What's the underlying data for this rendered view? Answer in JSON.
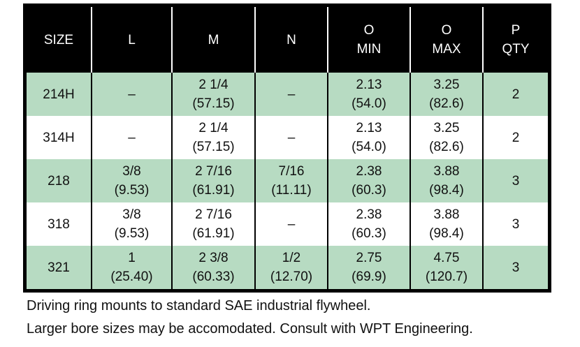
{
  "colors": {
    "row_green": "#b7dbc2",
    "header_bg": "#000000",
    "header_text": "#ffffff",
    "body_text": "#111111"
  },
  "table": {
    "columns": [
      {
        "key": "size",
        "label_lines": [
          "SIZE"
        ]
      },
      {
        "key": "l",
        "label_lines": [
          "L"
        ]
      },
      {
        "key": "m",
        "label_lines": [
          "M"
        ]
      },
      {
        "key": "n",
        "label_lines": [
          "N"
        ]
      },
      {
        "key": "o-min",
        "label_lines": [
          "O",
          "MIN"
        ]
      },
      {
        "key": "o-max",
        "label_lines": [
          "O",
          "MAX"
        ]
      },
      {
        "key": "p-qty",
        "label_lines": [
          "P",
          "QTY"
        ]
      }
    ],
    "rows": [
      {
        "shaded": true,
        "cells": [
          [
            "214H"
          ],
          [
            "–"
          ],
          [
            "2 1/4",
            "(57.15)"
          ],
          [
            "–"
          ],
          [
            "2.13",
            "(54.0)"
          ],
          [
            "3.25",
            "(82.6)"
          ],
          [
            "2"
          ]
        ]
      },
      {
        "shaded": false,
        "cells": [
          [
            "314H"
          ],
          [
            "–"
          ],
          [
            "2 1/4",
            "(57.15)"
          ],
          [
            "–"
          ],
          [
            "2.13",
            "(54.0)"
          ],
          [
            "3.25",
            "(82.6)"
          ],
          [
            "2"
          ]
        ]
      },
      {
        "shaded": true,
        "cells": [
          [
            "218"
          ],
          [
            "3/8",
            "(9.53)"
          ],
          [
            "2 7/16",
            "(61.91)"
          ],
          [
            "7/16",
            "(11.11)"
          ],
          [
            "2.38",
            "(60.3)"
          ],
          [
            "3.88",
            "(98.4)"
          ],
          [
            "3"
          ]
        ]
      },
      {
        "shaded": false,
        "cells": [
          [
            "318"
          ],
          [
            "3/8",
            "(9.53)"
          ],
          [
            "2 7/16",
            "(61.91)"
          ],
          [
            "–"
          ],
          [
            "2.38",
            "(60.3)"
          ],
          [
            "3.88",
            "(98.4)"
          ],
          [
            "3"
          ]
        ]
      },
      {
        "shaded": true,
        "cells": [
          [
            "321"
          ],
          [
            "1",
            "(25.40)"
          ],
          [
            "2 3/8",
            "(60.33)"
          ],
          [
            "1/2",
            "(12.70)"
          ],
          [
            "2.75",
            "(69.9)"
          ],
          [
            "4.75",
            "(120.7)"
          ],
          [
            "3"
          ]
        ]
      }
    ]
  },
  "notes": [
    "Driving ring mounts to standard SAE industrial flywheel.",
    "Larger bore sizes may be accomodated. Consult with WPT Engineering."
  ]
}
